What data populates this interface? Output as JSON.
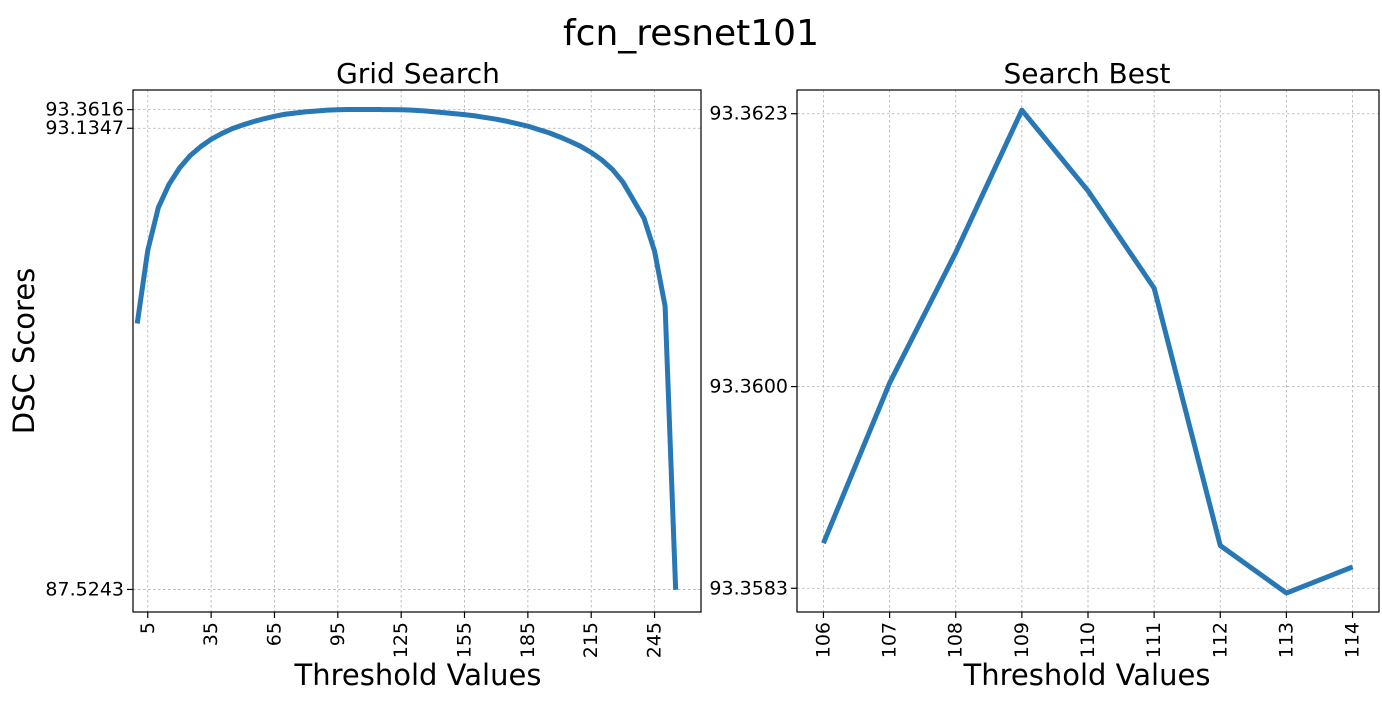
{
  "figure": {
    "suptitle": "fcn_resnet101"
  },
  "colors": {
    "line": "#2878b5"
  },
  "chart_data": [
    {
      "type": "line",
      "title": "Grid Search",
      "xlabel": "Threshold Values",
      "ylabel": "DSC Scores",
      "grid": true,
      "xticks": [
        5,
        35,
        65,
        95,
        125,
        155,
        185,
        215,
        245
      ],
      "yticks": [
        87.5243,
        93.1347,
        93.3616
      ],
      "xlim": [
        -2,
        267
      ],
      "ylim": [
        87.25,
        93.6
      ],
      "series": [
        {
          "x": [
            0,
            5,
            10,
            15,
            20,
            25,
            30,
            35,
            40,
            45,
            50,
            55,
            60,
            65,
            70,
            75,
            80,
            85,
            90,
            95,
            100,
            105,
            110,
            115,
            120,
            125,
            130,
            135,
            140,
            145,
            150,
            155,
            160,
            165,
            170,
            175,
            180,
            185,
            190,
            195,
            200,
            205,
            210,
            215,
            220,
            225,
            230,
            235,
            240,
            245,
            250,
            255
          ],
          "y": [
            90.76,
            91.65,
            92.17,
            92.45,
            92.65,
            92.8,
            92.91,
            93.0,
            93.07,
            93.13,
            93.175,
            93.215,
            93.25,
            93.28,
            93.305,
            93.32,
            93.335,
            93.345,
            93.355,
            93.36,
            93.362,
            93.362,
            93.362,
            93.362,
            93.361,
            93.36,
            93.355,
            93.347,
            93.337,
            93.325,
            93.313,
            93.3,
            93.285,
            93.265,
            93.245,
            93.22,
            93.19,
            93.16,
            93.12,
            93.08,
            93.03,
            92.975,
            92.915,
            92.84,
            92.75,
            92.635,
            92.48,
            92.26,
            92.04,
            91.64,
            90.97,
            87.52
          ]
        }
      ]
    },
    {
      "type": "line",
      "title": "Search Best",
      "xlabel": "Threshold Values",
      "ylabel": "",
      "grid": true,
      "categories": [
        "106",
        "107",
        "108",
        "109",
        "110",
        "111",
        "112",
        "113",
        "114"
      ],
      "yticks": [
        93.3583,
        93.36,
        93.3623
      ],
      "ylim": [
        93.3581,
        93.3625
      ],
      "series": [
        {
          "x": [
            106,
            107,
            108,
            109,
            110,
            111,
            112,
            113,
            114
          ],
          "y": [
            93.35868,
            93.36003,
            93.36113,
            93.36233,
            93.36165,
            93.36083,
            93.35866,
            93.35826,
            93.35848
          ]
        }
      ]
    }
  ]
}
